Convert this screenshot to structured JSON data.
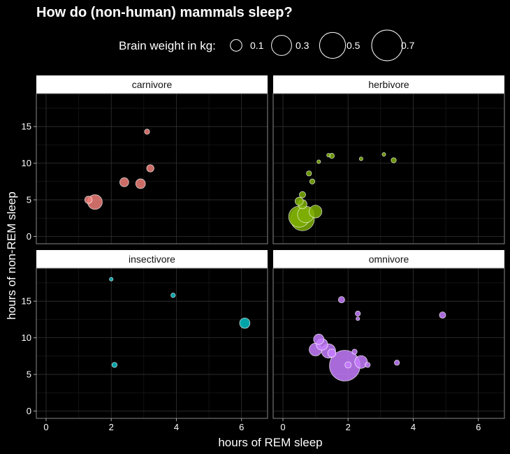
{
  "chart_data": {
    "type": "scatter",
    "title": "How do (non-human) mammals sleep?",
    "xlabel": "hours of REM sleep",
    "ylabel": "hours of non-REM sleep",
    "xlim": [
      -0.3,
      6.8
    ],
    "ylim": [
      -1,
      19.5
    ],
    "x_ticks": [
      0,
      2,
      4,
      6
    ],
    "y_ticks": [
      0,
      5,
      10,
      15
    ],
    "grid": true,
    "legend": {
      "title": "Brain weight in kg:",
      "placement": "top",
      "entries": [
        {
          "label": "0.1",
          "value": 0.1
        },
        {
          "label": "0.3",
          "value": 0.3
        },
        {
          "label": "0.5",
          "value": 0.5
        },
        {
          "label": "0.7",
          "value": 0.7
        }
      ]
    },
    "panels": [
      {
        "name": "carnivore",
        "color": "#f07f79",
        "points": [
          {
            "x": 3.1,
            "y": 14.3,
            "brainwt": 0.02
          },
          {
            "x": 3.2,
            "y": 9.3,
            "brainwt": 0.04
          },
          {
            "x": 2.4,
            "y": 7.4,
            "brainwt": 0.06
          },
          {
            "x": 2.9,
            "y": 7.2,
            "brainwt": 0.07
          },
          {
            "x": 1.3,
            "y": 5.0,
            "brainwt": 0.04
          },
          {
            "x": 1.5,
            "y": 4.7,
            "brainwt": 0.16
          }
        ]
      },
      {
        "name": "herbivore",
        "color": "#7cae00",
        "points": [
          {
            "x": 1.4,
            "y": 11.1,
            "brainwt": 0.01
          },
          {
            "x": 1.5,
            "y": 11.0,
            "brainwt": 0.02
          },
          {
            "x": 2.4,
            "y": 10.6,
            "brainwt": 0.01
          },
          {
            "x": 3.1,
            "y": 11.2,
            "brainwt": 0.01
          },
          {
            "x": 3.4,
            "y": 10.4,
            "brainwt": 0.02
          },
          {
            "x": 1.1,
            "y": 10.2,
            "brainwt": 0.01
          },
          {
            "x": 0.8,
            "y": 8.6,
            "brainwt": 0.02
          },
          {
            "x": 0.9,
            "y": 7.5,
            "brainwt": 0.02
          },
          {
            "x": 0.6,
            "y": 5.7,
            "brainwt": 0.03
          },
          {
            "x": 0.5,
            "y": 4.8,
            "brainwt": 0.05
          },
          {
            "x": 0.6,
            "y": 4.4,
            "brainwt": 0.06
          },
          {
            "x": 1.0,
            "y": 3.4,
            "brainwt": 0.12
          },
          {
            "x": 0.7,
            "y": 3.0,
            "brainwt": 0.2
          },
          {
            "x": 0.6,
            "y": 2.4,
            "brainwt": 0.42
          },
          {
            "x": 0.5,
            "y": 2.7,
            "brainwt": 0.33
          }
        ]
      },
      {
        "name": "insectivore",
        "color": "#00bfc4",
        "points": [
          {
            "x": 2.0,
            "y": 18.0,
            "brainwt": 0.01
          },
          {
            "x": 3.9,
            "y": 15.8,
            "brainwt": 0.015
          },
          {
            "x": 6.1,
            "y": 12.0,
            "brainwt": 0.08
          },
          {
            "x": 2.1,
            "y": 6.3,
            "brainwt": 0.02
          }
        ]
      },
      {
        "name": "omnivore",
        "color": "#c77cff",
        "points": [
          {
            "x": 1.8,
            "y": 15.2,
            "brainwt": 0.03
          },
          {
            "x": 2.3,
            "y": 13.3,
            "brainwt": 0.02
          },
          {
            "x": 2.3,
            "y": 12.6,
            "brainwt": 0.01
          },
          {
            "x": 4.9,
            "y": 13.1,
            "brainwt": 0.03
          },
          {
            "x": 1.1,
            "y": 9.8,
            "brainwt": 0.08
          },
          {
            "x": 1.2,
            "y": 9.1,
            "brainwt": 0.1
          },
          {
            "x": 1.0,
            "y": 8.4,
            "brainwt": 0.12
          },
          {
            "x": 1.4,
            "y": 8.2,
            "brainwt": 0.15
          },
          {
            "x": 1.5,
            "y": 7.9,
            "brainwt": 0.05
          },
          {
            "x": 2.2,
            "y": 8.1,
            "brainwt": 0.02
          },
          {
            "x": 2.4,
            "y": 6.7,
            "brainwt": 0.12
          },
          {
            "x": 2.6,
            "y": 6.3,
            "brainwt": 0.02
          },
          {
            "x": 3.5,
            "y": 6.6,
            "brainwt": 0.02
          },
          {
            "x": 1.9,
            "y": 6.2,
            "brainwt": 0.7
          },
          {
            "x": 2.0,
            "y": 6.3,
            "brainwt": 0.03
          }
        ]
      }
    ]
  }
}
